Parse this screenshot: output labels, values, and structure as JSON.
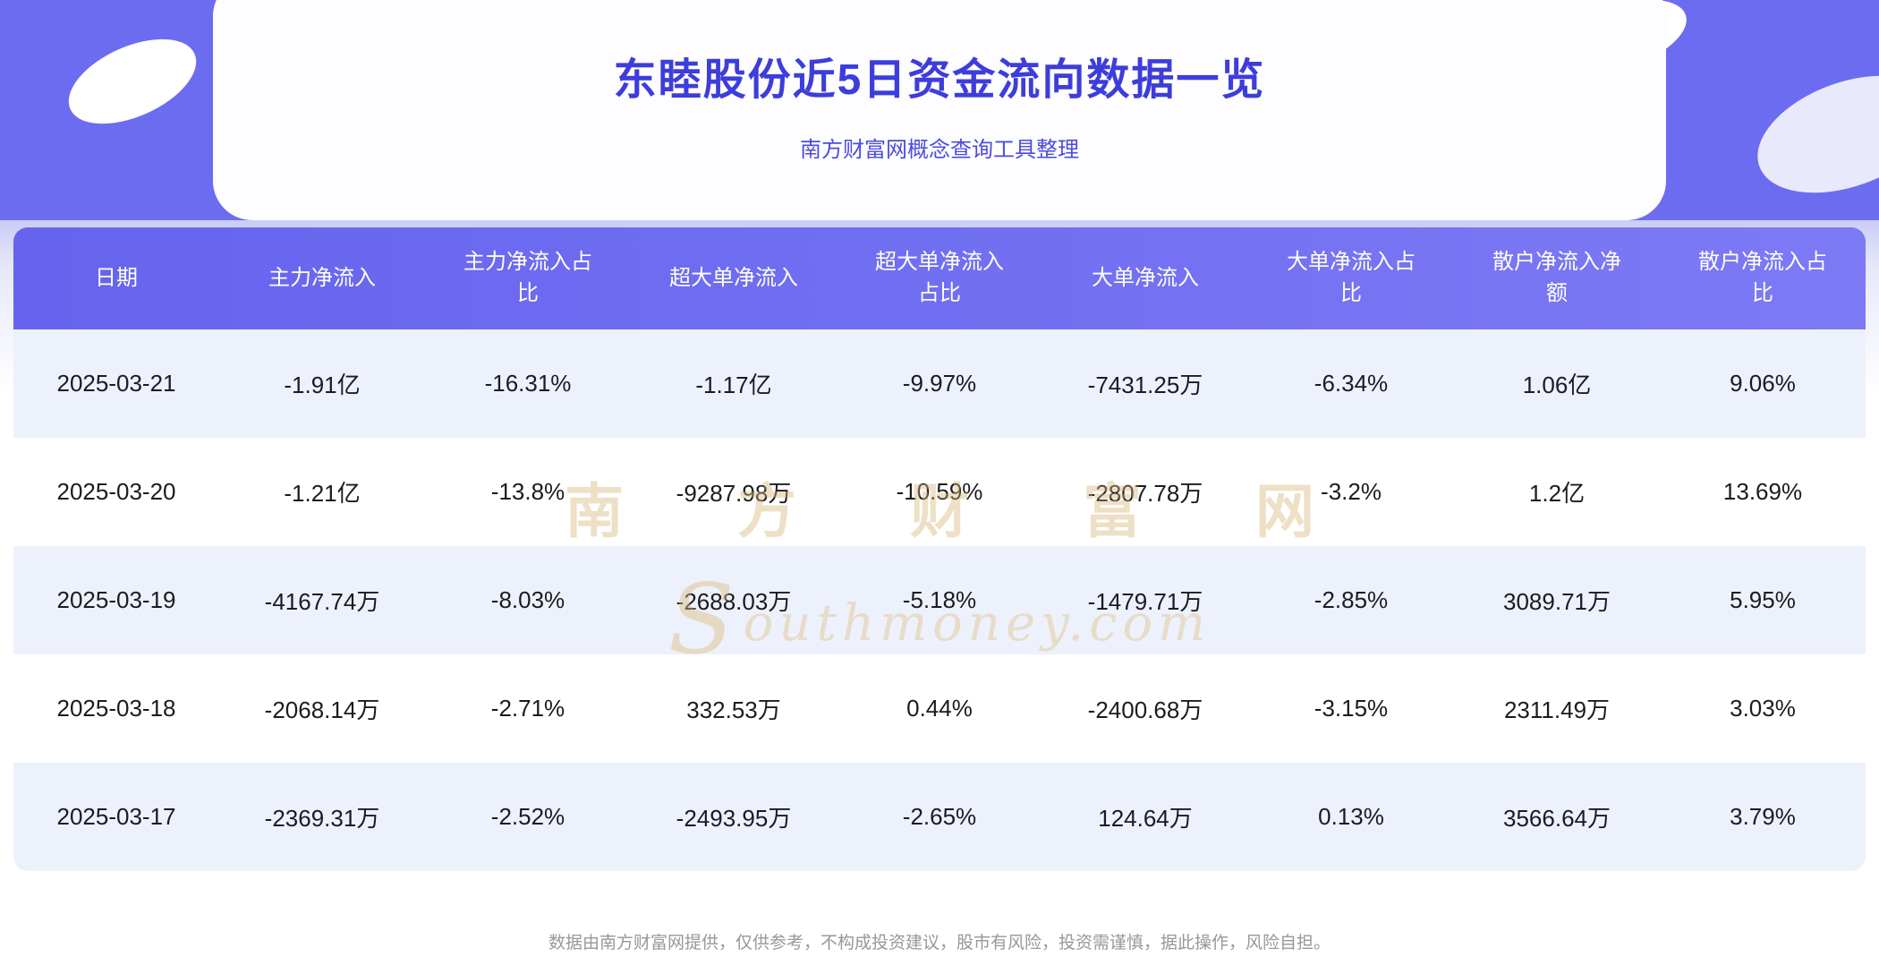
{
  "page": {
    "title": "东睦股份近5日资金流向数据一览",
    "subtitle": "南方财富网概念查询工具整理",
    "footer": "数据由南方财富网提供，仅供参考，不构成投资建议，股市有风险，投资需谨慎，据此操作，风险自担。"
  },
  "watermark": {
    "logo_glyph": "S",
    "line1": "南 方 财 富 网",
    "line2": "outhmoney.com"
  },
  "colors": {
    "banner_purple": "#6c6cf1",
    "title_text": "#3d3ddc",
    "subtitle_text": "#4b4be0",
    "header_bg_start": "#6664ee",
    "header_bg_end": "#7c7af4",
    "row_alt_bg": "#edf1fb",
    "row_bg": "#ffffff",
    "cell_text": "#1b1b20",
    "watermark_gold": "#d6b678",
    "footer_text": "#97979d"
  },
  "chart_data": {
    "type": "table",
    "title": "东睦股份近5日资金流向数据一览",
    "columns": [
      "日期",
      "主力净流入",
      "主力净流入占\n比",
      "超大单净流入",
      "超大单净流入\n占比",
      "大单净流入",
      "大单净流入占\n比",
      "散户净流入净\n额",
      "散户净流入占\n比"
    ],
    "rows": [
      [
        "2025-03-21",
        "-1.91亿",
        "-16.31%",
        "-1.17亿",
        "-9.97%",
        "-7431.25万",
        "-6.34%",
        "1.06亿",
        "9.06%"
      ],
      [
        "2025-03-20",
        "-1.21亿",
        "-13.8%",
        "-9287.98万",
        "-10.59%",
        "-2807.78万",
        "-3.2%",
        "1.2亿",
        "13.69%"
      ],
      [
        "2025-03-19",
        "-4167.74万",
        "-8.03%",
        "-2688.03万",
        "-5.18%",
        "-1479.71万",
        "-2.85%",
        "3089.71万",
        "5.95%"
      ],
      [
        "2025-03-18",
        "-2068.14万",
        "-2.71%",
        "332.53万",
        "0.44%",
        "-2400.68万",
        "-3.15%",
        "2311.49万",
        "3.03%"
      ],
      [
        "2025-03-17",
        "-2369.31万",
        "-2.52%",
        "-2493.95万",
        "-2.65%",
        "124.64万",
        "0.13%",
        "3566.64万",
        "3.79%"
      ]
    ]
  }
}
